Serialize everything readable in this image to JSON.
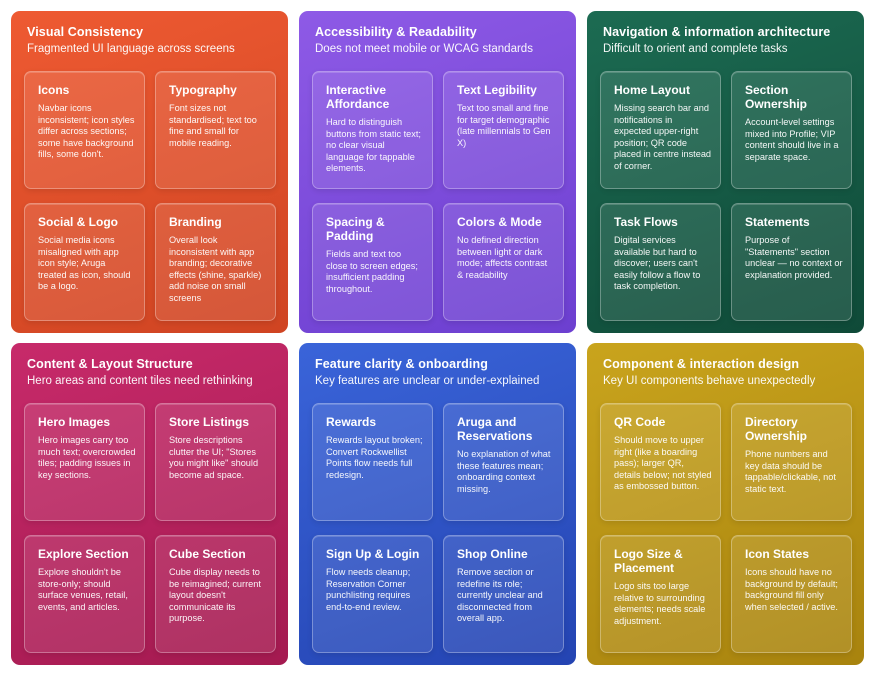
{
  "colors": {
    "visual_consistency": [
      "#ee5a32",
      "#cf4422"
    ],
    "accessibility": [
      "#8e5ae6",
      "#6c3fd0"
    ],
    "navigation": [
      "#1c6b52",
      "#0f4a38"
    ],
    "content_layout": [
      "#c72a6a",
      "#a41a50"
    ],
    "feature_clarity": [
      "#3a64d9",
      "#2444b2"
    ],
    "component_design": [
      "#c9a41d",
      "#a8830e"
    ]
  },
  "panels": [
    {
      "title": "Visual Consistency",
      "subtitle": "Fragmented UI language across screens",
      "cards": [
        {
          "title": "Icons",
          "body": "Navbar icons inconsistent; icon styles differ across sections; some have background fills, some don't."
        },
        {
          "title": "Typography",
          "body": "Font sizes not standardised; text too fine and small for mobile reading."
        },
        {
          "title": "Social & Logo",
          "body": "Social media icons misaligned with app icon style; Aruga treated as icon, should be a logo."
        },
        {
          "title": "Branding",
          "body": "Overall look inconsistent with app branding; decorative effects (shine, sparkle) add noise on small screens"
        }
      ]
    },
    {
      "title": "Accessibility  & Readability",
      "subtitle": "Does not meet mobile or WCAG standards",
      "cards": [
        {
          "title": "Interactive Affordance",
          "body": "Hard to distinguish buttons from static text; no clear visual language for tappable elements."
        },
        {
          "title": "Text Legibility",
          "body": "Text too small and fine for target demographic (late millennials to Gen X)"
        },
        {
          "title": "Spacing & Padding",
          "body": "Fields and text too close to screen edges; insufficient padding throughout."
        },
        {
          "title": "Colors & Mode",
          "body": "No defined direction between light or dark mode; affects contrast & readability"
        }
      ]
    },
    {
      "title": "Navigation & information architecture",
      "subtitle": "Difficult to orient and complete tasks",
      "cards": [
        {
          "title": "Home Layout",
          "body": "Missing search bar and notifications in expected upper-right position; QR code placed in centre instead of corner."
        },
        {
          "title": "Section Ownership",
          "body": "Account-level settings mixed into Profile; VIP content should live in a separate space."
        },
        {
          "title": "Task Flows",
          "body": "Digital services available but hard to discover; users can't easily follow a flow to task completion."
        },
        {
          "title": "Statements",
          "body": "Purpose of \"Statements\" section unclear — no context or explanation provided."
        }
      ]
    },
    {
      "title": "Content & Layout Structure",
      "subtitle": "Hero areas and content tiles need rethinking",
      "cards": [
        {
          "title": "Hero Images",
          "body": "Hero images carry too much text; overcrowded tiles; padding issues in key sections."
        },
        {
          "title": "Store Listings",
          "body": "Store descriptions clutter the UI; \"Stores you might like\" should become ad space."
        },
        {
          "title": "Explore Section",
          "body": "Explore shouldn't be store-only; should surface venues, retail, events, and articles."
        },
        {
          "title": "Cube Section",
          "body": "Cube display needs to be reimagined; current layout doesn't communicate its purpose."
        }
      ]
    },
    {
      "title": "Feature clarity & onboarding",
      "subtitle": "Key features are unclear or under-explained",
      "cards": [
        {
          "title": "Rewards",
          "body": "Rewards layout broken; Convert Rockwellist Points flow needs full redesign."
        },
        {
          "title": "Aruga and Reservations",
          "body": "No explanation of what these features mean; onboarding context missing."
        },
        {
          "title": "Sign Up & Login",
          "body": "Flow needs cleanup; Reservation Corner punchlisting requires end-to-end review."
        },
        {
          "title": "Shop Online",
          "body": "Remove section or redefine its role; currently unclear and disconnected from overall app."
        }
      ]
    },
    {
      "title": "Component & interaction design",
      "subtitle": "Key UI components behave unexpectedly",
      "cards": [
        {
          "title": "QR Code",
          "body": "Should move to upper right (like a boarding pass); larger QR, details below; not styled as embossed button."
        },
        {
          "title": "Directory Ownership",
          "body": "Phone numbers and key data should be tappable/clickable, not static text."
        },
        {
          "title": "Logo Size & Placement",
          "body": "Logo sits too large relative to surrounding elements; needs scale adjustment."
        },
        {
          "title": "Icon States",
          "body": "Icons should have no background by default; background fill only when selected / active."
        }
      ]
    }
  ]
}
